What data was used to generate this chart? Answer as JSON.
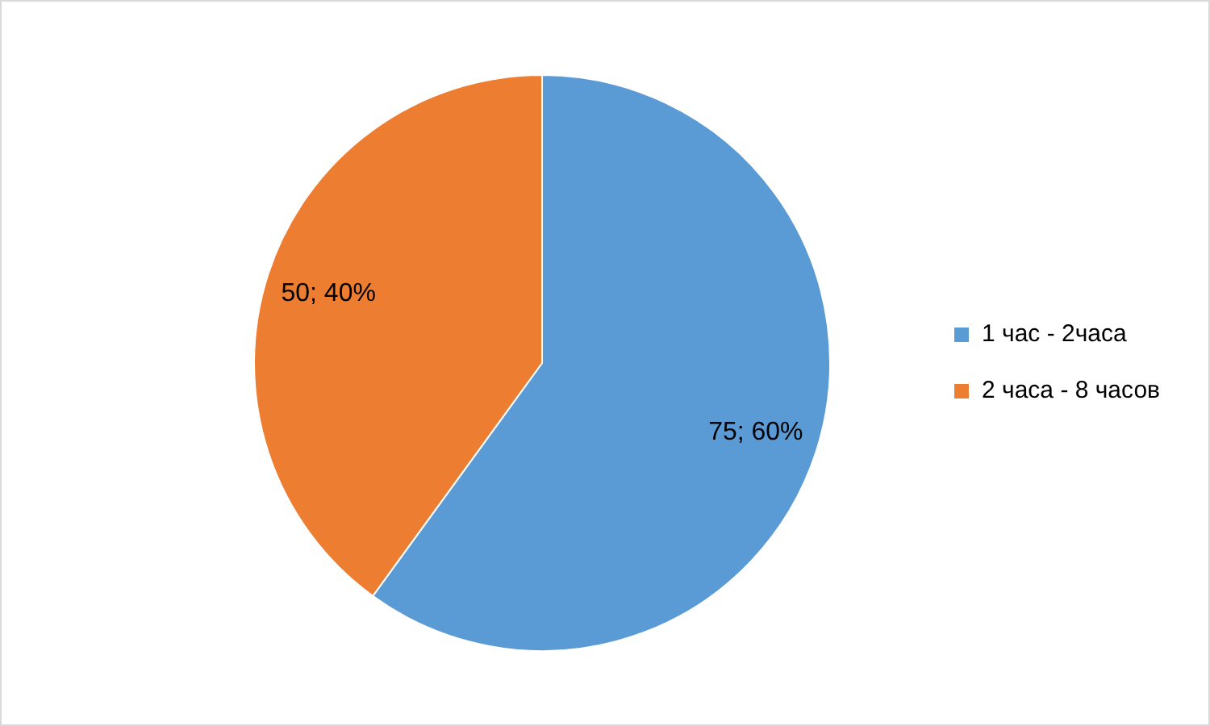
{
  "chart_data": {
    "type": "pie",
    "categories": [
      "1 час - 2часа",
      "2 часа - 8 часов"
    ],
    "values": [
      75,
      50
    ],
    "colors": [
      "#5b9bd5",
      "#ed7d31"
    ],
    "value_labels": [
      "75; 60%",
      "50; 40%"
    ],
    "legend": "right"
  }
}
